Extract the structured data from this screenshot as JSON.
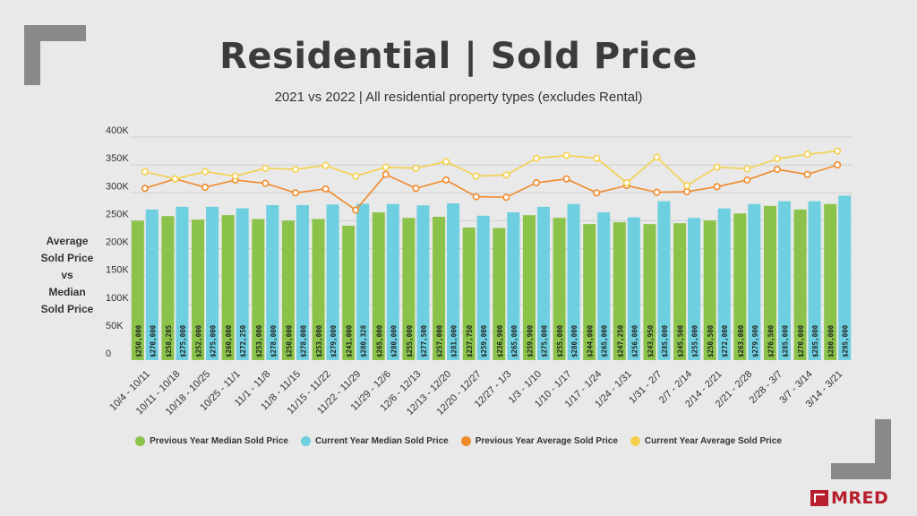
{
  "title": "Residential | Sold Price",
  "subtitle": "2021 vs 2022 | All residential property types (excludes Rental)",
  "ylabel_lines": [
    "Average",
    "Sold Price",
    "vs",
    "Median",
    "Sold Price"
  ],
  "logo_text": "MRED",
  "colors": {
    "prev_median": "#8bc34a",
    "curr_median": "#6ecfe0",
    "prev_avg": "#f08a2c",
    "curr_avg": "#f6d04d"
  },
  "chart_data": {
    "type": "bar",
    "title": "Residential | Sold Price",
    "subtitle": "2021 vs 2022 | All residential property types (excludes Rental)",
    "ylabel": "Average Sold Price vs Median Sold Price",
    "ylim": [
      0,
      400000
    ],
    "yticks": [
      "0",
      "50K",
      "100K",
      "150K",
      "200K",
      "250K",
      "300K",
      "350K",
      "400K"
    ],
    "categories": [
      "10/4 - 10/11",
      "10/11 - 10/18",
      "10/18 - 10/25",
      "10/25 - 11/1",
      "11/1 - 11/8",
      "11/8 - 11/15",
      "11/15 - 11/22",
      "11/22 - 11/29",
      "11/29 - 12/6",
      "12/6 - 12/13",
      "12/13 - 12/20",
      "12/20 - 12/27",
      "12/27 - 1/3",
      "1/3 - 1/10",
      "1/10 - 1/17",
      "1/17 - 1/24",
      "1/24 - 1/31",
      "1/31 - 2/7",
      "2/7 - 2/14",
      "2/14 - 2/21",
      "2/21 - 2/28",
      "2/28 - 3/7",
      "3/7 - 3/14",
      "3/14 - 3/21"
    ],
    "legend_position": "bottom",
    "series": [
      {
        "name": "Previous Year Median Sold Price",
        "kind": "bar",
        "values": [
          250000,
          258205,
          252000,
          260000,
          253000,
          250000,
          253000,
          241000,
          265000,
          255000,
          257000,
          237750,
          236900,
          259900,
          255000,
          244000,
          247250,
          243950,
          245500,
          250500,
          263000,
          276500,
          270000,
          280000
        ],
        "labels": [
          "$250,000",
          "$258,205",
          "$252,000",
          "$260,000",
          "$253,000",
          "$250,000",
          "$253,000",
          "$241,000",
          "$265,000",
          "$255,000",
          "$257,000",
          "$237,750",
          "$236,900",
          "$259,900",
          "$255,000",
          "$244,000",
          "$247,250",
          "$243,950",
          "$245,500",
          "$250,500",
          "$263,000",
          "$276,500",
          "$270,000",
          "$280,000"
        ]
      },
      {
        "name": "Current Year Median Sold Price",
        "kind": "bar",
        "values": [
          270000,
          275000,
          275000,
          272250,
          278000,
          278000,
          279000,
          280328,
          280000,
          277500,
          281000,
          259000,
          265000,
          275000,
          280000,
          265000,
          256000,
          285000,
          255000,
          272000,
          279900,
          285000,
          285000,
          295000
        ],
        "labels": [
          "$270,000",
          "$275,000",
          "$275,000",
          "$272,250",
          "$278,000",
          "$278,000",
          "$279,000",
          "$280,328",
          "$280,000",
          "$277,500",
          "$281,000",
          "$259,000",
          "$265,000",
          "$275,000",
          "$280,000",
          "$265,000",
          "$256,000",
          "$285,000",
          "$255,000",
          "$272,000",
          "$279,900",
          "$285,000",
          "$285,000",
          "$295,000"
        ]
      },
      {
        "name": "Previous Year Average Sold Price",
        "kind": "line",
        "values": [
          308000,
          325000,
          310000,
          323000,
          317000,
          300000,
          307000,
          269000,
          333000,
          308000,
          323000,
          293000,
          292000,
          318000,
          325000,
          300000,
          313000,
          301000,
          302000,
          311000,
          323000,
          342000,
          333000,
          350000
        ]
      },
      {
        "name": "Current Year Average Sold Price",
        "kind": "line",
        "values": [
          338000,
          325000,
          338000,
          330000,
          344000,
          342000,
          349000,
          330000,
          346000,
          344000,
          356000,
          330000,
          332000,
          362000,
          367000,
          362000,
          318000,
          364000,
          313000,
          346000,
          343000,
          361000,
          369000,
          375000
        ]
      }
    ]
  }
}
